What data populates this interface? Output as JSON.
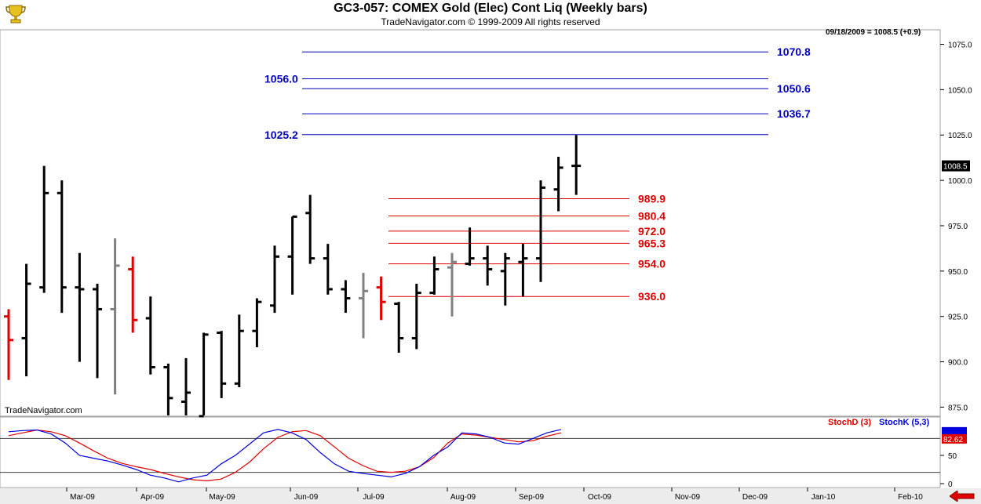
{
  "header": {
    "title": "GC3-057:  COMEX Gold (Elec) Cont Liq  (Weekly bars)",
    "subtitle": "TradeNavigator.com © 1999-2009 All rights reserved",
    "last_info": "09/18/2009 = 1008.5 (+0.9)",
    "watermark": "TradeNavigator.com"
  },
  "icons": {
    "logo": "trophy-icon",
    "nav": "left-arrow-icon"
  },
  "colors": {
    "up": "#000000",
    "down": "#e00000",
    "neutral": "#808080",
    "projection": "#0000c0",
    "retracement": "#e00000"
  },
  "chart_data": [
    {
      "type": "ohlc",
      "title": "GC3-057:  COMEX Gold (Elec) Cont Liq  (Weekly bars)",
      "ylim": [
        870,
        1083
      ],
      "y_ticks": [
        875,
        900,
        925,
        950,
        975,
        1000,
        1025,
        1050,
        1075
      ],
      "y_tick_labels": [
        "875.0",
        "900.0",
        "925.0",
        "950.0",
        "975.0",
        "1000.0",
        "1025.0",
        "1050.0",
        "1075.0"
      ],
      "x_labels": [
        "Mar-09",
        "Apr-09",
        "May-09",
        "Jun-09",
        "Jul-09",
        "Aug-09",
        "Sep-09",
        "Oct-09",
        "Nov-09",
        "Dec-09",
        "Jan-10",
        "Feb-10"
      ],
      "last_price": "1008.5",
      "bars": [
        {
          "o": 925,
          "h": 929,
          "l": 890,
          "c": 912,
          "color": "down"
        },
        {
          "o": 913,
          "h": 954,
          "l": 892,
          "c": 943,
          "color": "up"
        },
        {
          "o": 941,
          "h": 1008,
          "l": 938,
          "c": 993,
          "color": "up"
        },
        {
          "o": 993,
          "h": 1000,
          "l": 927,
          "c": 941,
          "color": "up"
        },
        {
          "o": 941,
          "h": 960,
          "l": 900,
          "c": 940,
          "color": "up"
        },
        {
          "o": 940,
          "h": 943,
          "l": 891,
          "c": 929,
          "color": "up"
        },
        {
          "o": 929,
          "h": 968,
          "l": 882,
          "c": 953,
          "color": "neutral"
        },
        {
          "o": 951,
          "h": 958,
          "l": 916,
          "c": 923,
          "color": "down"
        },
        {
          "o": 924,
          "h": 936,
          "l": 893,
          "c": 897,
          "color": "up"
        },
        {
          "o": 897,
          "h": 899,
          "l": 865,
          "c": 880,
          "color": "up"
        },
        {
          "o": 878,
          "h": 902,
          "l": 865,
          "c": 883,
          "color": "up"
        },
        {
          "o": 870,
          "h": 916,
          "l": 869,
          "c": 915,
          "color": "up"
        },
        {
          "o": 916,
          "h": 917,
          "l": 880,
          "c": 888,
          "color": "up"
        },
        {
          "o": 888,
          "h": 926,
          "l": 886,
          "c": 917,
          "color": "up"
        },
        {
          "o": 917,
          "h": 935,
          "l": 908,
          "c": 933,
          "color": "up"
        },
        {
          "o": 931,
          "h": 964,
          "l": 927,
          "c": 958,
          "color": "up"
        },
        {
          "o": 958,
          "h": 980,
          "l": 937,
          "c": 980,
          "color": "up"
        },
        {
          "o": 982,
          "h": 992,
          "l": 954,
          "c": 957,
          "color": "up"
        },
        {
          "o": 957,
          "h": 965,
          "l": 937,
          "c": 940,
          "color": "up"
        },
        {
          "o": 940,
          "h": 945,
          "l": 927,
          "c": 935,
          "color": "up"
        },
        {
          "o": 935,
          "h": 949,
          "l": 913,
          "c": 939,
          "color": "neutral"
        },
        {
          "o": 941,
          "h": 947,
          "l": 923,
          "c": 933,
          "color": "down"
        },
        {
          "o": 932,
          "h": 933,
          "l": 905,
          "c": 913,
          "color": "up"
        },
        {
          "o": 913,
          "h": 943,
          "l": 907,
          "c": 938,
          "color": "up"
        },
        {
          "o": 938,
          "h": 958,
          "l": 937,
          "c": 951,
          "color": "up"
        },
        {
          "o": 952,
          "h": 960,
          "l": 925,
          "c": 955,
          "color": "neutral"
        },
        {
          "o": 954,
          "h": 974,
          "l": 953,
          "c": 957,
          "color": "up"
        },
        {
          "o": 957,
          "h": 964,
          "l": 942,
          "c": 951,
          "color": "up"
        },
        {
          "o": 950,
          "h": 960,
          "l": 931,
          "c": 957,
          "color": "up"
        },
        {
          "o": 955,
          "h": 965,
          "l": 936,
          "c": 957,
          "color": "up"
        },
        {
          "o": 957,
          "h": 1000,
          "l": 944,
          "c": 996,
          "color": "up"
        },
        {
          "o": 995,
          "h": 1013,
          "l": 983,
          "c": 1007,
          "color": "up"
        },
        {
          "o": 1008,
          "h": 1025,
          "l": 992,
          "c": 1008,
          "color": "up"
        }
      ],
      "projections": [
        "1070.8",
        "1056.0",
        "1050.6",
        "1036.7",
        "1025.2"
      ],
      "retracements": [
        "989.9",
        "980.4",
        "972.0",
        "965.3",
        "954.0",
        "936.0"
      ]
    },
    {
      "type": "line",
      "series": [
        {
          "name": "StochD (3)",
          "color": "#e00000",
          "values": [
            85,
            90,
            95,
            92,
            85,
            72,
            58,
            45,
            36,
            30,
            25,
            18,
            12,
            7,
            5,
            8,
            20,
            38,
            62,
            82,
            92,
            94,
            85,
            65,
            45,
            32,
            22,
            20,
            22,
            30,
            46,
            72,
            88,
            86,
            82,
            78,
            74,
            76,
            84,
            90
          ]
        },
        {
          "name": "StochK (5,3)",
          "color": "#0000e0",
          "values": [
            92,
            94,
            95,
            88,
            72,
            50,
            45,
            40,
            33,
            25,
            15,
            10,
            3,
            10,
            15,
            35,
            50,
            70,
            90,
            96,
            90,
            78,
            55,
            35,
            22,
            18,
            15,
            12,
            18,
            30,
            50,
            65,
            90,
            88,
            82,
            72,
            70,
            80,
            90,
            96
          ]
        }
      ],
      "y_ticks": [
        0,
        50
      ],
      "y_tick_labels": [
        "0",
        "50"
      ],
      "reference_lines": [
        20,
        80
      ],
      "last_values": [
        "82.62"
      ]
    }
  ]
}
